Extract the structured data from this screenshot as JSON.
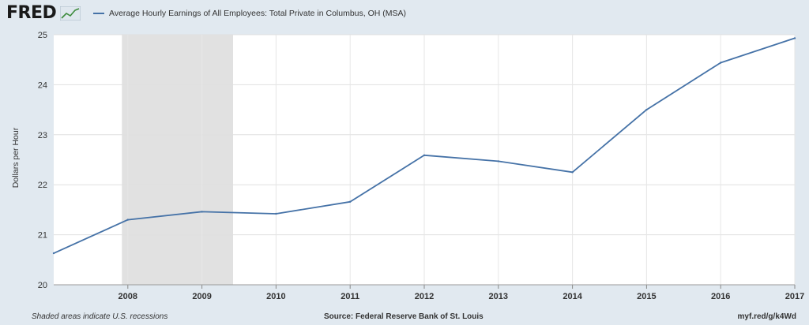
{
  "header": {
    "logo_text": "FRED",
    "logo_icon": "fred-chart-icon"
  },
  "legend": {
    "label": "Average Hourly Earnings of All Employees: Total Private in Columbus, OH (MSA)",
    "color": "#4572a7"
  },
  "footer": {
    "left": "Shaded areas indicate U.S. recessions",
    "center": "Source: Federal Reserve Bank of St. Louis",
    "right": "myf.red/g/k4Wd"
  },
  "chart_data": {
    "type": "line",
    "title": "",
    "xlabel": "",
    "ylabel": "Dollars per Hour",
    "xlim": [
      2007.0,
      2017.0
    ],
    "ylim": [
      20,
      25
    ],
    "y_ticks": [
      "20",
      "21",
      "22",
      "23",
      "24",
      "25"
    ],
    "x_ticks": [
      "2008",
      "2009",
      "2010",
      "2011",
      "2012",
      "2013",
      "2014",
      "2015",
      "2016",
      "2017"
    ],
    "grid": true,
    "legend_position": "top-left",
    "recessions": [
      [
        2007.92,
        2009.42
      ]
    ],
    "recession_color": "#e1e1e1",
    "series": [
      {
        "name": "Average Hourly Earnings of All Employees: Total Private in Columbus, OH (MSA)",
        "color": "#4572a7",
        "x": [
          2007.0,
          2008.0,
          2009.0,
          2010.0,
          2011.0,
          2012.0,
          2013.0,
          2014.0,
          2015.0,
          2016.0,
          2017.0
        ],
        "values": [
          20.63,
          21.3,
          21.46,
          21.42,
          21.66,
          22.59,
          22.47,
          22.25,
          23.5,
          24.44,
          24.93
        ]
      }
    ]
  }
}
